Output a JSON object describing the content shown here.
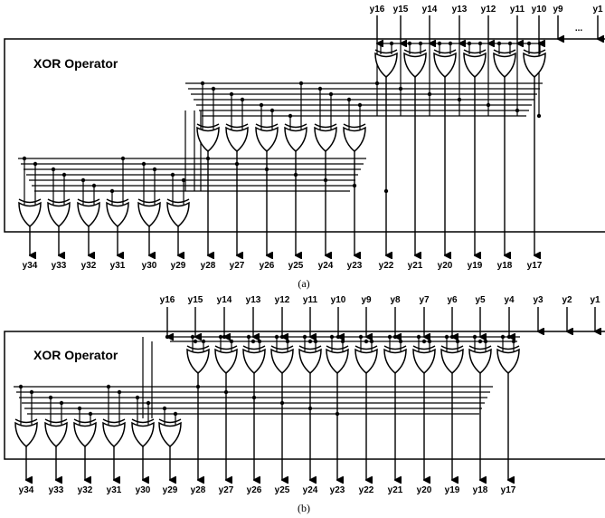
{
  "panel_a": {
    "title": "XOR Operator",
    "inputs": [
      "y16",
      "y15",
      "y14",
      "y13",
      "y12",
      "y11",
      "y10",
      "y9",
      "y1"
    ],
    "ellipsis": "...",
    "outputs": [
      "y34",
      "y33",
      "y32",
      "y31",
      "y30",
      "y29",
      "y28",
      "y27",
      "y26",
      "y25",
      "y24",
      "y23",
      "y22",
      "y21",
      "y20",
      "y19",
      "y18",
      "y17"
    ],
    "caption": "(a)"
  },
  "panel_b": {
    "title": "XOR Operator",
    "inputs": [
      "y16",
      "y15",
      "y14",
      "y13",
      "y12",
      "y11",
      "y10",
      "y9",
      "y8",
      "y7",
      "y6",
      "y5",
      "y4",
      "y3",
      "y2",
      "y1"
    ],
    "outputs": [
      "y34",
      "y33",
      "y32",
      "y31",
      "y30",
      "y29",
      "y28",
      "y27",
      "y26",
      "y25",
      "y24",
      "y23",
      "y22",
      "y21",
      "y20",
      "y19",
      "y18",
      "y17"
    ],
    "caption": "(b)"
  }
}
